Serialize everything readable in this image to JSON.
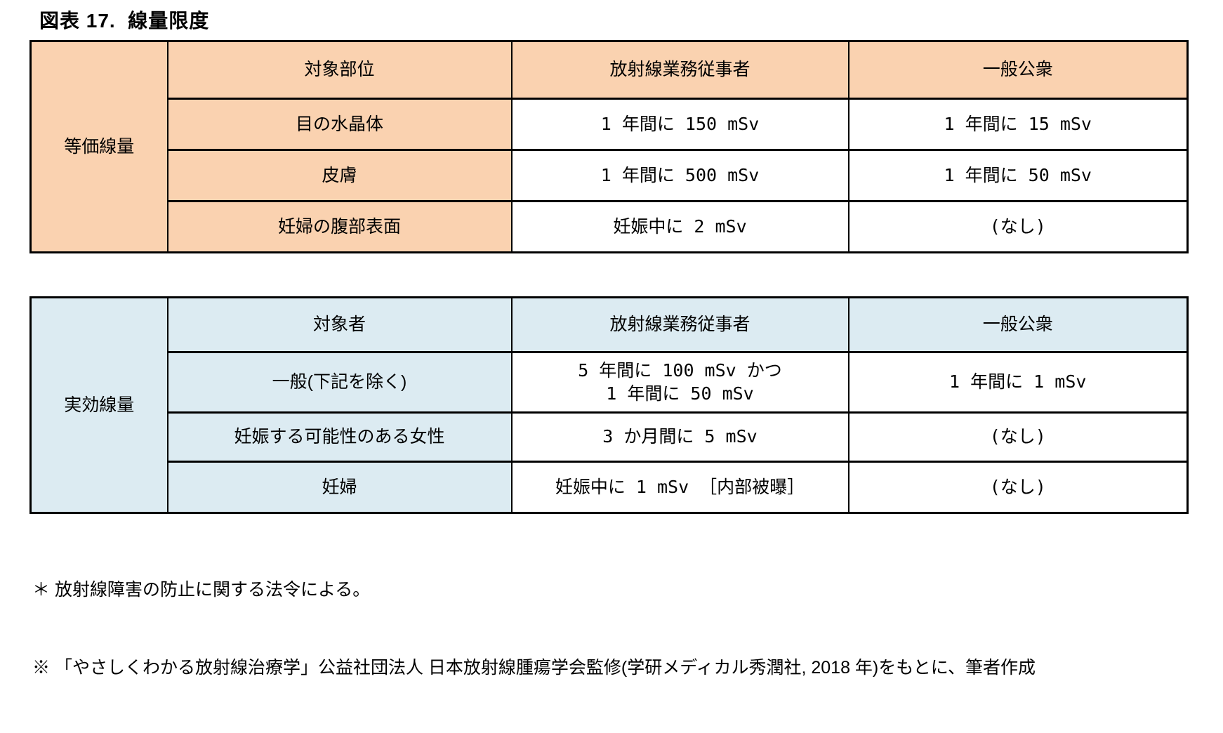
{
  "page": {
    "title": "図表 17.  線量限度"
  },
  "colors": {
    "equivalent_dose_header": "#FAD2B0",
    "effective_dose_header": "#DCEBF2",
    "border": "#000000",
    "background": "#FFFFFF"
  },
  "equivalent_dose_table": {
    "group_label": "等価線量",
    "columns": [
      "対象部位",
      "放射線業務従事者",
      "一般公衆"
    ],
    "rows": [
      {
        "label": "目の水晶体",
        "worker": "1 年間に 150 mSv",
        "public": "1 年間に 15 mSv"
      },
      {
        "label": "皮膚",
        "worker": "1 年間に 500 mSv",
        "public": "1 年間に 50 mSv"
      },
      {
        "label": "妊婦の腹部表面",
        "worker": "妊娠中に 2 mSv",
        "public": "(なし)"
      }
    ]
  },
  "effective_dose_table": {
    "group_label": "実効線量",
    "columns": [
      "対象者",
      "放射線業務従事者",
      "一般公衆"
    ],
    "rows": [
      {
        "label": "一般(下記を除く)",
        "worker": "5 年間に 100 mSv かつ\n1 年間に 50 mSv",
        "public": "1 年間に 1 mSv"
      },
      {
        "label": "妊娠する可能性のある女性",
        "worker": "3 か月間に 5 mSv",
        "public": "(なし)"
      },
      {
        "label": "妊婦",
        "worker": "妊娠中に 1 mSv ［内部被曝］",
        "public": "(なし)"
      }
    ]
  },
  "footnotes": [
    "＊ 放射線障害の防止に関する法令による。",
    "※ 「やさしくわかる放射線治療学」公益社団法人 日本放射線腫瘍学会監修(学研メディカル秀潤社, 2018 年)をもとに、筆者作成"
  ]
}
